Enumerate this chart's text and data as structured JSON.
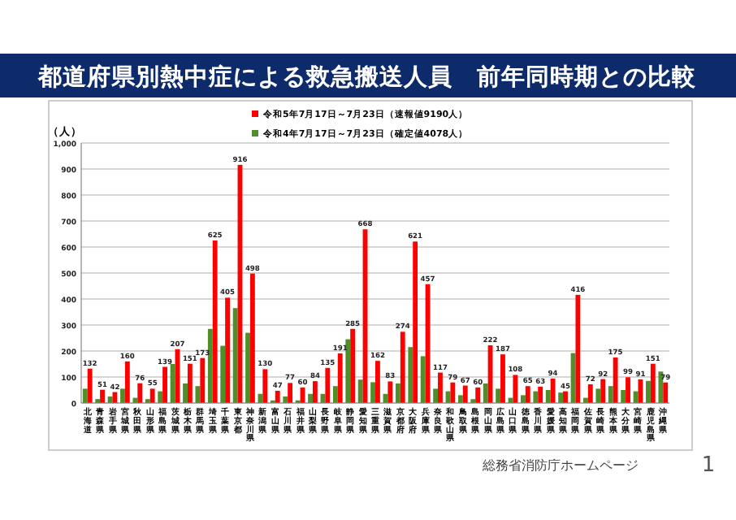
{
  "chart_data": {
    "type": "bar",
    "title": "都道府県別熱中症による救急搬送人員　前年同時期との比較",
    "ylabel": "（人）",
    "categories": [
      "北海道",
      "青森県",
      "岩手県",
      "宮城県",
      "秋田県",
      "山形県",
      "福島県",
      "茨城県",
      "栃木県",
      "群馬県",
      "埼玉県",
      "千葉県",
      "東京都",
      "神奈川県",
      "新潟県",
      "富山県",
      "石川県",
      "福井県",
      "山梨県",
      "長野県",
      "岐阜県",
      "静岡県",
      "愛知県",
      "三重県",
      "滋賀県",
      "京都府",
      "大阪府",
      "兵庫県",
      "奈良県",
      "和歌山県",
      "鳥取県",
      "島根県",
      "岡山県",
      "広島県",
      "山口県",
      "徳島県",
      "香川県",
      "愛媛県",
      "高知県",
      "福岡県",
      "佐賀県",
      "長崎県",
      "熊本県",
      "大分県",
      "宮崎県",
      "鹿児島県",
      "沖縄県"
    ],
    "series": [
      {
        "name": "令和4年7月17日～7月23日（確定値4078人）",
        "color": "#4e8f2a",
        "values": [
          55,
          15,
          25,
          55,
          20,
          15,
          45,
          150,
          75,
          65,
          285,
          220,
          365,
          270,
          35,
          10,
          25,
          10,
          35,
          35,
          65,
          245,
          90,
          80,
          35,
          75,
          215,
          180,
          55,
          45,
          30,
          15,
          75,
          55,
          20,
          30,
          45,
          50,
          40,
          192,
          20,
          55,
          65,
          50,
          45,
          85,
          121
        ]
      },
      {
        "name": "令和5年7月17日～7月23日（速報値9190人）",
        "color": "#ff0000",
        "values": [
          132,
          51,
          42,
          160,
          76,
          55,
          139,
          207,
          151,
          173,
          625,
          405,
          916,
          498,
          130,
          47,
          77,
          60,
          84,
          135,
          191,
          285,
          668,
          162,
          83,
          274,
          621,
          457,
          117,
          79,
          67,
          60,
          222,
          187,
          108,
          65,
          63,
          94,
          45,
          416,
          72,
          92,
          175,
          99,
          91,
          151,
          79
        ],
        "value_labels": [
          "132",
          "51",
          "42",
          "160",
          "76",
          "55",
          "139",
          "207",
          "151",
          "173",
          "625",
          "405",
          "916",
          "498",
          "130",
          "47",
          "77",
          "60",
          "84",
          "135",
          "191",
          "285",
          "668",
          "162",
          "83",
          "274",
          "621",
          "457",
          "117",
          "79",
          "67",
          "60",
          "222",
          "187",
          "108",
          "65",
          "63",
          "94",
          "45",
          "416",
          "72",
          "92",
          "175",
          "99",
          "91",
          "151",
          "79"
        ]
      }
    ],
    "ylim": [
      0,
      1000
    ],
    "yticks": [
      0,
      100,
      200,
      300,
      400,
      500,
      600,
      700,
      800,
      900,
      {
        "value": 1000,
        "label": "1,000"
      }
    ],
    "grid": "y",
    "legend": "top",
    "annotations": [
      "総務省消防庁ホームページ",
      "1"
    ]
  }
}
